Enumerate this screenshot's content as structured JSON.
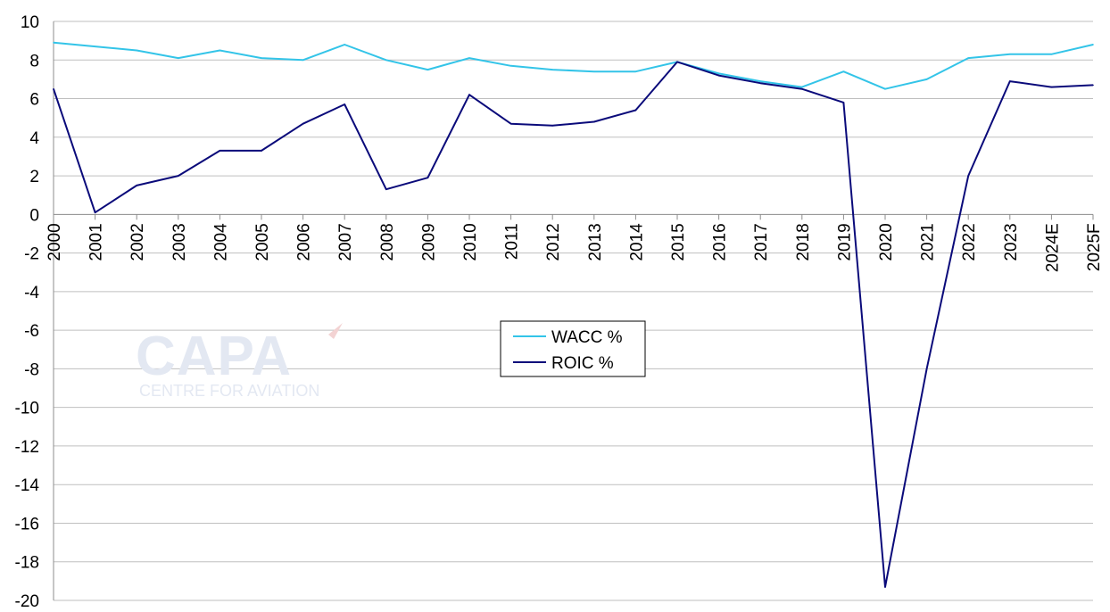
{
  "chart_data": {
    "type": "line",
    "categories": [
      "2000",
      "2001",
      "2002",
      "2003",
      "2004",
      "2005",
      "2006",
      "2007",
      "2008",
      "2009",
      "2010",
      "2011",
      "2012",
      "2013",
      "2014",
      "2015",
      "2016",
      "2017",
      "2018",
      "2019",
      "2020",
      "2021",
      "2022",
      "2023",
      "2024E",
      "2025F"
    ],
    "series": [
      {
        "name": "WACC %",
        "color": "#33c4e8",
        "values": [
          8.9,
          8.7,
          8.5,
          8.1,
          8.5,
          8.1,
          8.0,
          8.8,
          8.0,
          7.5,
          8.1,
          7.7,
          7.5,
          7.4,
          7.4,
          7.9,
          7.3,
          6.9,
          6.6,
          7.4,
          6.5,
          7.0,
          8.1,
          8.3,
          8.3,
          8.8
        ]
      },
      {
        "name": "ROIC %",
        "color": "#0a0a7a",
        "values": [
          6.5,
          0.1,
          1.5,
          2.0,
          3.3,
          3.3,
          4.7,
          5.7,
          1.3,
          1.9,
          6.2,
          4.7,
          4.6,
          4.8,
          5.4,
          7.9,
          7.2,
          6.8,
          6.5,
          5.8,
          -19.3,
          -8.0,
          2.0,
          6.9,
          6.6,
          6.7
        ]
      }
    ],
    "ylim": [
      -20,
      10
    ],
    "yticks": [
      10,
      8,
      6,
      4,
      2,
      0,
      -2,
      -4,
      -6,
      -8,
      -10,
      -12,
      -14,
      -16,
      -18,
      -20
    ],
    "grid": true,
    "legend_placement": "center"
  },
  "watermark": {
    "main": "CAPA",
    "sub": "CENTRE FOR AVIATION"
  }
}
